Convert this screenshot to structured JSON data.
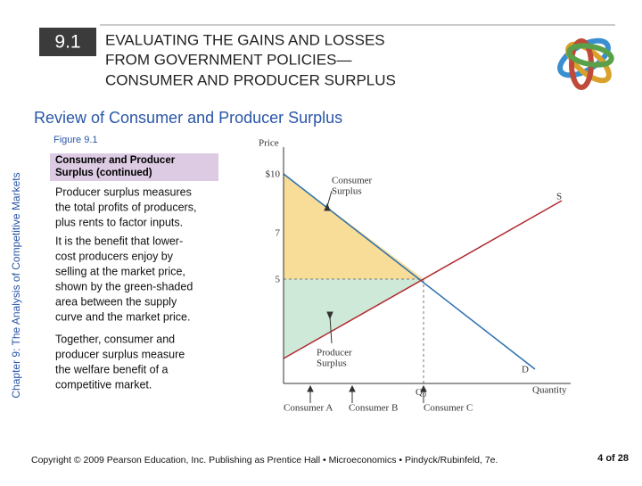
{
  "header": {
    "section": "9.1",
    "title": [
      "EVALUATING THE GAINS AND LOSSES",
      "FROM GOVERNMENT POLICIES—",
      "CONSUMER AND PRODUCER SURPLUS"
    ]
  },
  "subtitle": "Review of Consumer and Producer Surplus",
  "side_label": "Chapter 9: The Analysis of Competitive Markets",
  "figure_label": "Figure 9.1",
  "box_title": [
    "Consumer and Producer",
    "Surplus (continued)"
  ],
  "paragraphs": [
    [
      "Producer surplus measures",
      "the total profits of producers,",
      "plus rents to factor inputs."
    ],
    [
      "It is the benefit that lower-",
      "cost producers enjoy by",
      "selling at the market price,",
      "shown by the green-shaded",
      "area between the supply",
      "curve and the market price."
    ],
    [
      "Together, consumer and",
      "producer surplus measure",
      "the welfare benefit of a",
      "competitive market."
    ]
  ],
  "diagram": {
    "y_axis_label": "Price",
    "x_axis_label": "Quantity",
    "price_labels": [
      "$10",
      "7",
      "5"
    ],
    "consumer_surplus": [
      "Consumer",
      "Surplus"
    ],
    "producer_surplus": [
      "Producer",
      "Surplus"
    ],
    "supply": "S",
    "demand": "D",
    "quantity_label": {
      "label": "Q",
      "subscript": "0"
    },
    "consumers": [
      "Consumer A",
      "Consumer B",
      "Consumer C"
    ]
  },
  "footer": {
    "copyright": "Copyright © 2009 Pearson Education, Inc. Publishing as Prentice Hall • Microeconomics • Pindyck/Rubinfeld, 7e.",
    "page": "4 of 28"
  }
}
